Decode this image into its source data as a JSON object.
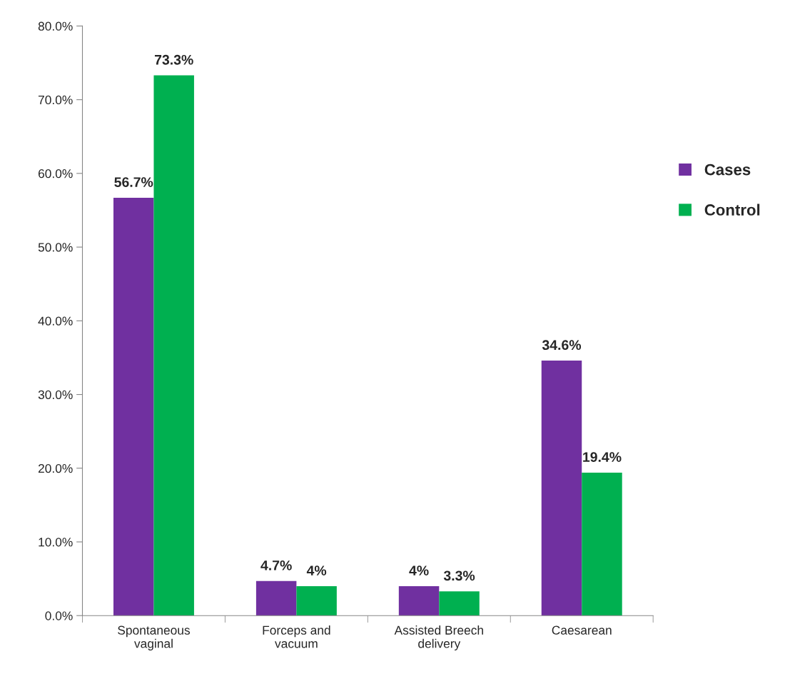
{
  "chart_data": {
    "type": "bar",
    "categories": [
      "Spontaneous\nvaginal",
      "Forceps and\nvacuum",
      "Assisted Breech\ndelivery",
      "Caesarean"
    ],
    "series": [
      {
        "name": "Cases",
        "color": "#7030a0",
        "values": [
          56.7,
          4.7,
          4.0,
          34.6
        ],
        "value_labels": [
          "56.7%",
          "4.7%",
          "4%",
          "34.6%"
        ]
      },
      {
        "name": "Control",
        "color": "#00b050",
        "values": [
          73.3,
          4.0,
          3.3,
          19.4
        ],
        "value_labels": [
          "73.3%",
          "4%",
          "3.3%",
          "19.4%"
        ]
      }
    ],
    "ylim": [
      0,
      80
    ],
    "yticks": [
      {
        "value": 0,
        "label": "0.0%"
      },
      {
        "value": 10,
        "label": "10.0%"
      },
      {
        "value": 20,
        "label": "20.0%"
      },
      {
        "value": 30,
        "label": "30.0%"
      },
      {
        "value": 40,
        "label": "40.0%"
      },
      {
        "value": 50,
        "label": "50.0%"
      },
      {
        "value": 60,
        "label": "60.0%"
      },
      {
        "value": 70,
        "label": "70.0%"
      },
      {
        "value": 80,
        "label": "80.0%"
      }
    ],
    "grid": false,
    "legend": "right"
  }
}
